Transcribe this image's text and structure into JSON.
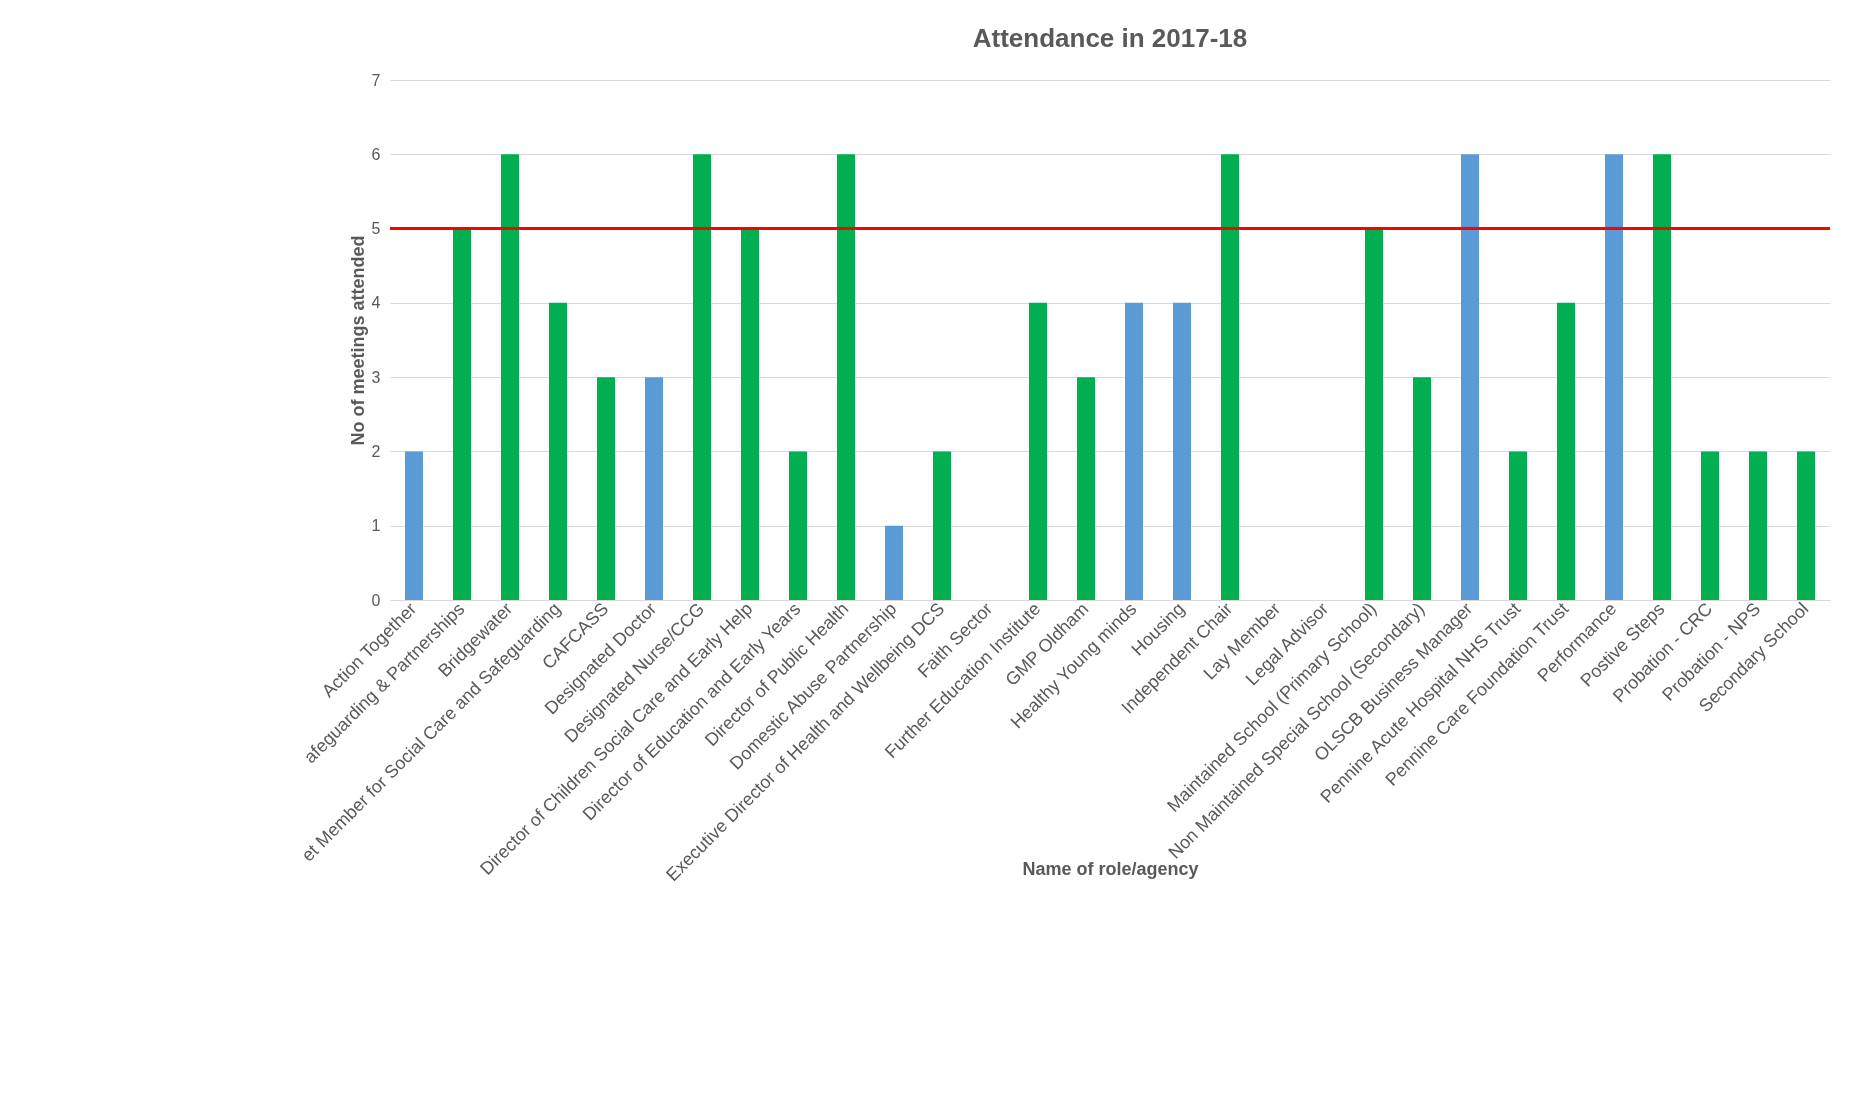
{
  "chart_data": {
    "type": "bar",
    "title": "Attendance in 2017-18",
    "xlabel": "Name of role/agency",
    "ylabel": "No of meetings attended",
    "categories": [
      "Action Together",
      "afeguarding & Partnerships",
      "Bridgewater",
      "et Member for Social Care and Safeguarding",
      "CAFCASS",
      "Designated Doctor",
      "Designated Nurse/CCG",
      "Director of Children Social Care and Early Help",
      "Director of Education and Early Years",
      "Director of Public Health",
      "Domestic Abuse Partnership",
      "Executive Director of Health and Wellbeing DCS",
      "Faith Sector",
      "Further Education Institute",
      "GMP Oldham",
      "Healthy Young minds",
      "Housing",
      "Independent Chair",
      "Lay Member",
      "Legal Advisor",
      "Maintained School (Primary School)",
      "Non Maintained Special School (Secondary)",
      "OLSCB Business Manager",
      "Pennine Acute Hospital NHS Trust",
      "Pennine Care Foundation Trust",
      "Performance",
      "Postive Steps",
      "Probation - CRC",
      "Probation - NPS",
      "Secondary School"
    ],
    "values": [
      2,
      5,
      6,
      4,
      3,
      3,
      6,
      5,
      2,
      6,
      1,
      2,
      0,
      4,
      3,
      4,
      4,
      6,
      0,
      0,
      5,
      3,
      6,
      2,
      4,
      6,
      6,
      2,
      2,
      2
    ],
    "colors": [
      "#5b9bd5",
      "#00b050",
      "#00b050",
      "#00b050",
      "#00b050",
      "#5b9bd5",
      "#00b050",
      "#00b050",
      "#00b050",
      "#00b050",
      "#5b9bd5",
      "#00b050",
      "#00b050",
      "#00b050",
      "#00b050",
      "#5b9bd5",
      "#5b9bd5",
      "#00b050",
      "#00b050",
      "#00b050",
      "#00b050",
      "#00b050",
      "#5b9bd5",
      "#00b050",
      "#00b050",
      "#5b9bd5",
      "#00b050",
      "#00b050",
      "#00b050",
      "#00b050"
    ],
    "ylim": [
      0,
      7
    ],
    "yticks": [
      0,
      1,
      2,
      3,
      4,
      5,
      6,
      7
    ],
    "grid": "y",
    "ref_lines": [
      {
        "axis": "y",
        "value": 5,
        "color": "#ff0000"
      }
    ]
  }
}
